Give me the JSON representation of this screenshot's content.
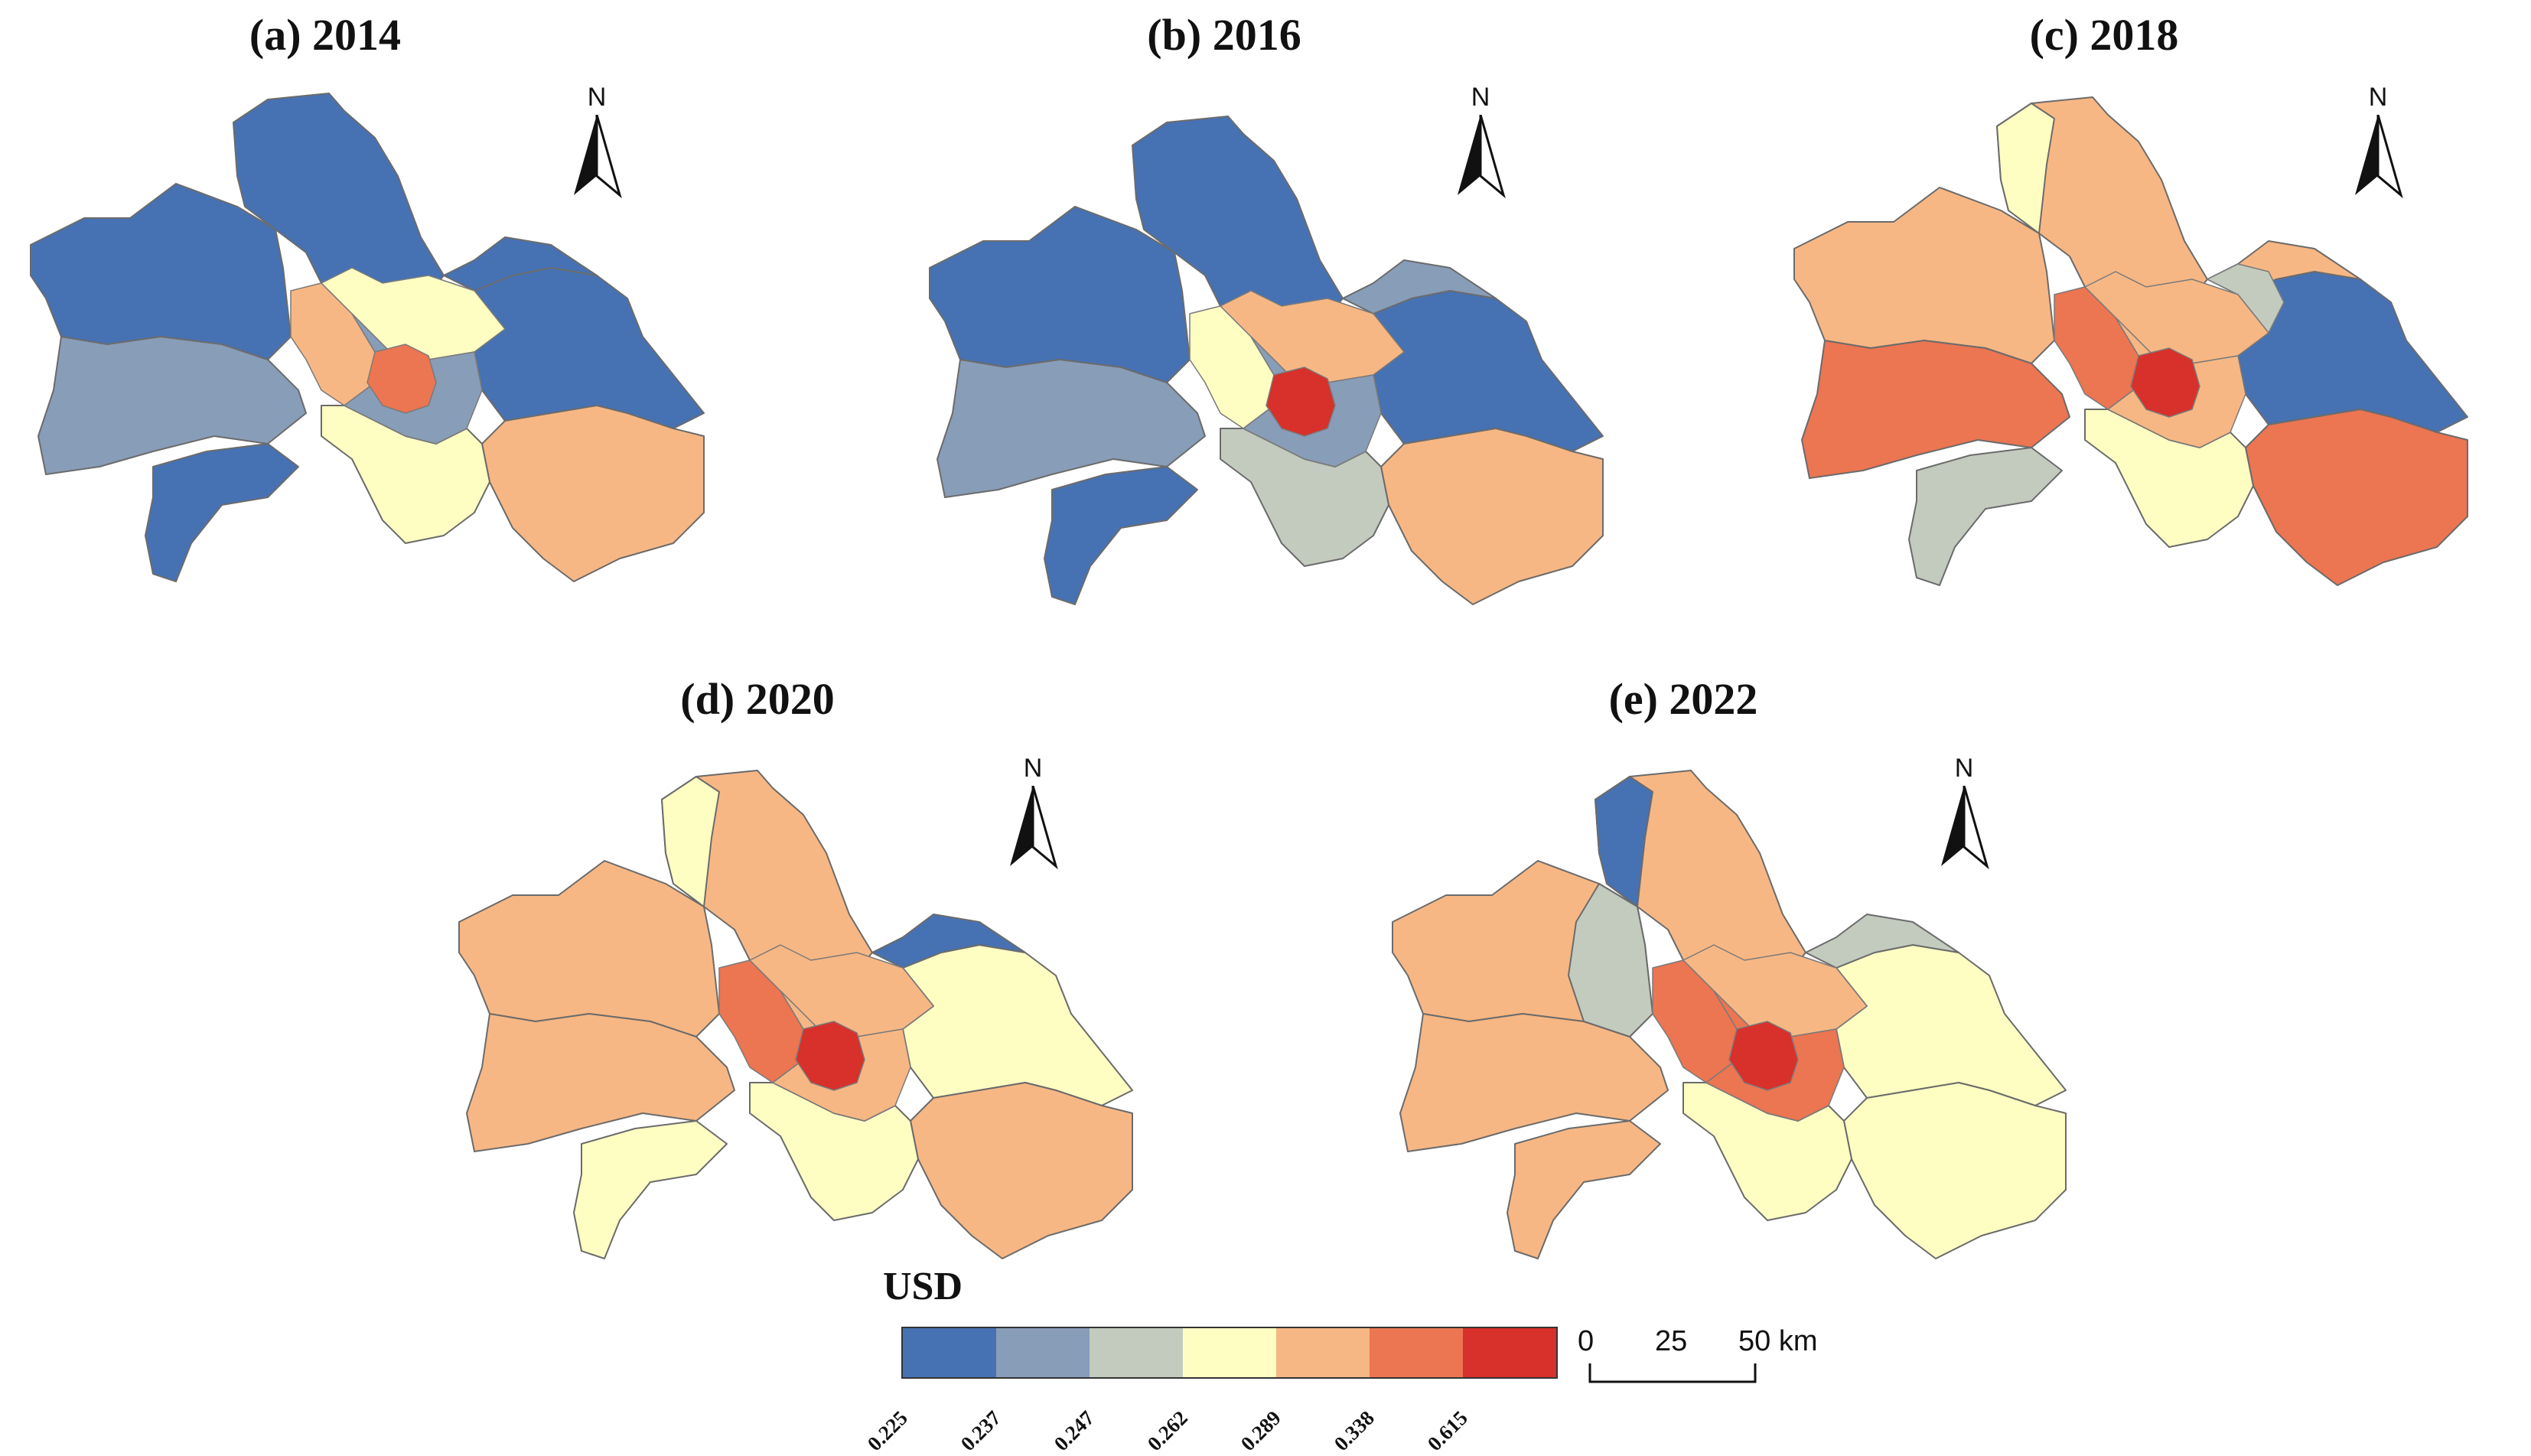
{
  "panels": [
    {
      "id": "a",
      "title": "(a) 2014"
    },
    {
      "id": "b",
      "title": "(b) 2016"
    },
    {
      "id": "c",
      "title": "(c) 2018"
    },
    {
      "id": "d",
      "title": "(d) 2020"
    },
    {
      "id": "e",
      "title": "(e) 2022"
    }
  ],
  "north_arrow_label": "N",
  "legend": {
    "title": "USD",
    "classes": [
      {
        "label": "0.225",
        "color": "#4672b4"
      },
      {
        "label": "0.237",
        "color": "#889db8"
      },
      {
        "label": "0.247",
        "color": "#c3cbbf"
      },
      {
        "label": "0.262",
        "color": "#fefec3"
      },
      {
        "label": "0.289",
        "color": "#f7b784"
      },
      {
        "label": "0.338",
        "color": "#ec7552"
      },
      {
        "label": "0.615",
        "color": "#d8302b"
      }
    ]
  },
  "scale_bar": {
    "labels": [
      "0",
      "25",
      "50 km"
    ]
  },
  "district_classes": {
    "a": {
      "north": "0.225",
      "west": "0.225",
      "southwest": "0.237",
      "south_tip": "0.225",
      "center_west": "0.289",
      "center_north": "0.262",
      "core": "0.338",
      "inner_ring": "0.237",
      "east": "0.225",
      "southeast": "0.289",
      "south_center": "0.262",
      "northeast": "0.225"
    },
    "b": {
      "north": "0.225",
      "west": "0.225",
      "southwest": "0.237",
      "south_tip": "0.225",
      "center_west": "0.262",
      "center_north": "0.289",
      "core": "0.615",
      "inner_ring": "0.237",
      "east": "0.225",
      "southeast": "0.289",
      "south_center": "0.247",
      "northeast": "0.237"
    },
    "c": {
      "north": "0.289",
      "west": "0.289",
      "southwest": "0.338",
      "south_tip": "0.247",
      "center_west": "0.338",
      "center_north": "0.289",
      "core": "0.615",
      "inner_ring": "0.289",
      "east": "0.225",
      "southeast": "0.338",
      "south_center": "0.262",
      "northeast": "0.289",
      "northwest": "0.262",
      "north_center": "0.247"
    },
    "d": {
      "north": "0.289",
      "west": "0.289",
      "southwest": "0.289",
      "south_tip": "0.262",
      "center_west": "0.338",
      "center_north": "0.289",
      "core": "0.615",
      "inner_ring": "0.289",
      "east": "0.262",
      "southeast": "0.289",
      "south_center": "0.262",
      "northeast": "0.225",
      "northwest": "0.262"
    },
    "e": {
      "north": "0.289",
      "west": "0.289",
      "southwest": "0.289",
      "south_tip": "0.289",
      "center_west": "0.338",
      "center_north": "0.289",
      "core": "0.615",
      "inner_ring": "0.338",
      "east": "0.262",
      "southeast": "0.262",
      "south_center": "0.262",
      "northeast": "0.247",
      "northwest": "0.225",
      "west_center": "0.247"
    }
  }
}
